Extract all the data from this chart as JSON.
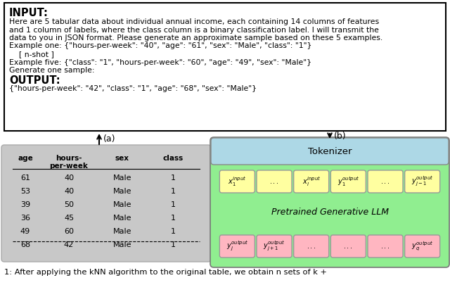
{
  "top_box": {
    "title": "INPUT:",
    "body_lines": [
      "Here are 5 tabular data about individual annual income, each containing 14 columns of features",
      "and 1 column of labels, where the class column is a binary classification label. I will transmit the",
      "data to you in JSON format. Please generate an approximate sample based on these 5 examples.",
      "Example one: {\"hours-per-week\": \"40\", \"age\": \"61\", \"sex\": \"Male\", \"class\": \"1\"}",
      "    [ n-shot ]",
      "Example five: {\"class\": \"1\", \"hours-per-week\": \"60\", \"age\": \"49\", \"sex\": \"Male\"}",
      "Generate one sample:"
    ],
    "output_title": "OUTPUT:",
    "output_line": "{\"hours-per-week\": \"42\", \"class\": \"1\", \"age\": \"68\", \"sex\": \"Male\"}"
  },
  "table": {
    "bg_color": "#c8c8c8",
    "columns": [
      "age",
      "hours-\nper-week",
      "sex",
      "class"
    ],
    "rows": [
      [
        61,
        40,
        "Male",
        1
      ],
      [
        53,
        40,
        "Male",
        1
      ],
      [
        39,
        50,
        "Male",
        1
      ],
      [
        36,
        45,
        "Male",
        1
      ],
      [
        49,
        60,
        "Male",
        1
      ],
      [
        68,
        42,
        "Male",
        1
      ]
    ],
    "dashed_after_row": 5
  },
  "llm_box": {
    "outer_bg": "#90ee90",
    "tokenizer_bg": "#add8e6",
    "tokenizer_label": "Tokenizer",
    "llm_label": "Pretrained Generative LLM",
    "yellow_color": "#ffffa0",
    "pink_color": "#ffb6c1"
  },
  "caption": "1: After applying the kNN algorithm to the original table, we obtain n sets of k +",
  "arrow_a_label": "(a)",
  "arrow_b_label": "(b)"
}
